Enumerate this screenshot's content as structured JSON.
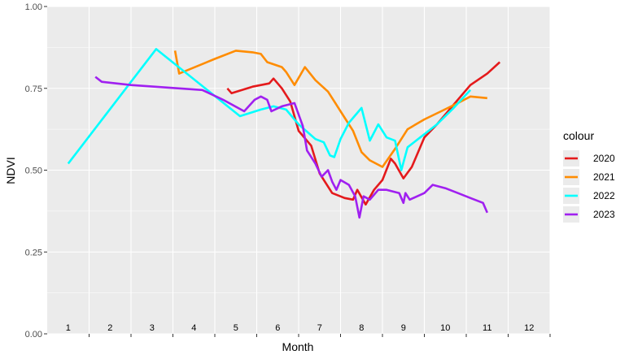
{
  "chart_data": {
    "type": "line",
    "title": "",
    "xlabel": "Month",
    "ylabel": "NDVI",
    "xlim": [
      0.5,
      12.5
    ],
    "ylim": [
      0,
      1
    ],
    "grid": true,
    "legend_position": "right",
    "legend_title": "colour",
    "x_tick_labels": [
      "1",
      "2",
      "3",
      "4",
      "5",
      "6",
      "7",
      "8",
      "9",
      "10",
      "11",
      "12"
    ],
    "x_tick_positions": [
      1,
      2,
      3,
      4,
      5,
      6,
      7,
      8,
      9,
      10,
      11,
      12
    ],
    "y_ticks": [
      {
        "value": 0,
        "label": "0.00"
      },
      {
        "value": 0.25,
        "label": "0.25"
      },
      {
        "value": 0.5,
        "label": "0.50"
      },
      {
        "value": 0.75,
        "label": "0.75"
      },
      {
        "value": 1,
        "label": "1.00"
      }
    ],
    "series": [
      {
        "name": "2020",
        "color": "#e41a1c",
        "points": [
          [
            4.8,
            0.75
          ],
          [
            4.9,
            0.735
          ],
          [
            5.4,
            0.755
          ],
          [
            5.8,
            0.765
          ],
          [
            5.9,
            0.78
          ],
          [
            6.1,
            0.75
          ],
          [
            6.3,
            0.71
          ],
          [
            6.5,
            0.62
          ],
          [
            6.8,
            0.575
          ],
          [
            7.0,
            0.49
          ],
          [
            7.3,
            0.43
          ],
          [
            7.6,
            0.415
          ],
          [
            7.8,
            0.41
          ],
          [
            7.9,
            0.44
          ],
          [
            8.1,
            0.395
          ],
          [
            8.3,
            0.44
          ],
          [
            8.5,
            0.47
          ],
          [
            8.7,
            0.535
          ],
          [
            8.8,
            0.52
          ],
          [
            9.0,
            0.475
          ],
          [
            9.2,
            0.51
          ],
          [
            9.5,
            0.6
          ],
          [
            9.8,
            0.64
          ],
          [
            10.2,
            0.7
          ],
          [
            10.6,
            0.76
          ],
          [
            11.0,
            0.795
          ],
          [
            11.3,
            0.83
          ]
        ]
      },
      {
        "name": "2021",
        "color": "#ff8c00",
        "points": [
          [
            3.55,
            0.865
          ],
          [
            3.65,
            0.795
          ],
          [
            4.5,
            0.84
          ],
          [
            5.0,
            0.865
          ],
          [
            5.4,
            0.86
          ],
          [
            5.6,
            0.855
          ],
          [
            5.75,
            0.83
          ],
          [
            6.1,
            0.815
          ],
          [
            6.2,
            0.8
          ],
          [
            6.4,
            0.76
          ],
          [
            6.65,
            0.815
          ],
          [
            6.9,
            0.775
          ],
          [
            7.2,
            0.74
          ],
          [
            7.4,
            0.7
          ],
          [
            7.6,
            0.66
          ],
          [
            7.8,
            0.62
          ],
          [
            8.0,
            0.555
          ],
          [
            8.2,
            0.53
          ],
          [
            8.5,
            0.51
          ],
          [
            8.8,
            0.565
          ],
          [
            9.1,
            0.625
          ],
          [
            9.5,
            0.655
          ],
          [
            9.9,
            0.68
          ],
          [
            10.3,
            0.705
          ],
          [
            10.6,
            0.725
          ],
          [
            11.0,
            0.72
          ]
        ]
      },
      {
        "name": "2022",
        "color": "#00ffff",
        "points": [
          [
            1.0,
            0.52
          ],
          [
            3.1,
            0.87
          ],
          [
            5.1,
            0.665
          ],
          [
            5.6,
            0.685
          ],
          [
            5.9,
            0.695
          ],
          [
            6.2,
            0.685
          ],
          [
            6.5,
            0.64
          ],
          [
            6.9,
            0.595
          ],
          [
            7.1,
            0.585
          ],
          [
            7.25,
            0.545
          ],
          [
            7.35,
            0.54
          ],
          [
            7.5,
            0.595
          ],
          [
            7.7,
            0.645
          ],
          [
            8.0,
            0.69
          ],
          [
            8.2,
            0.59
          ],
          [
            8.4,
            0.64
          ],
          [
            8.6,
            0.6
          ],
          [
            8.8,
            0.59
          ],
          [
            8.95,
            0.5
          ],
          [
            9.1,
            0.57
          ],
          [
            9.4,
            0.6
          ],
          [
            9.8,
            0.64
          ],
          [
            10.2,
            0.69
          ],
          [
            10.6,
            0.745
          ]
        ]
      },
      {
        "name": "2023",
        "color": "#a020f0",
        "points": [
          [
            1.65,
            0.785
          ],
          [
            1.8,
            0.77
          ],
          [
            2.5,
            0.76
          ],
          [
            4.2,
            0.745
          ],
          [
            4.7,
            0.715
          ],
          [
            5.2,
            0.68
          ],
          [
            5.45,
            0.715
          ],
          [
            5.6,
            0.725
          ],
          [
            5.75,
            0.715
          ],
          [
            5.85,
            0.68
          ],
          [
            6.1,
            0.695
          ],
          [
            6.4,
            0.705
          ],
          [
            6.6,
            0.635
          ],
          [
            6.7,
            0.56
          ],
          [
            6.9,
            0.52
          ],
          [
            7.05,
            0.48
          ],
          [
            7.2,
            0.5
          ],
          [
            7.3,
            0.465
          ],
          [
            7.4,
            0.44
          ],
          [
            7.5,
            0.47
          ],
          [
            7.7,
            0.455
          ],
          [
            7.85,
            0.42
          ],
          [
            7.95,
            0.355
          ],
          [
            8.05,
            0.42
          ],
          [
            8.2,
            0.41
          ],
          [
            8.4,
            0.44
          ],
          [
            8.6,
            0.44
          ],
          [
            8.9,
            0.43
          ],
          [
            9.0,
            0.4
          ],
          [
            9.05,
            0.43
          ],
          [
            9.15,
            0.41
          ],
          [
            9.5,
            0.43
          ],
          [
            9.7,
            0.455
          ],
          [
            10.0,
            0.445
          ],
          [
            10.3,
            0.43
          ],
          [
            10.6,
            0.415
          ],
          [
            10.9,
            0.4
          ],
          [
            11.0,
            0.37
          ]
        ]
      }
    ]
  }
}
